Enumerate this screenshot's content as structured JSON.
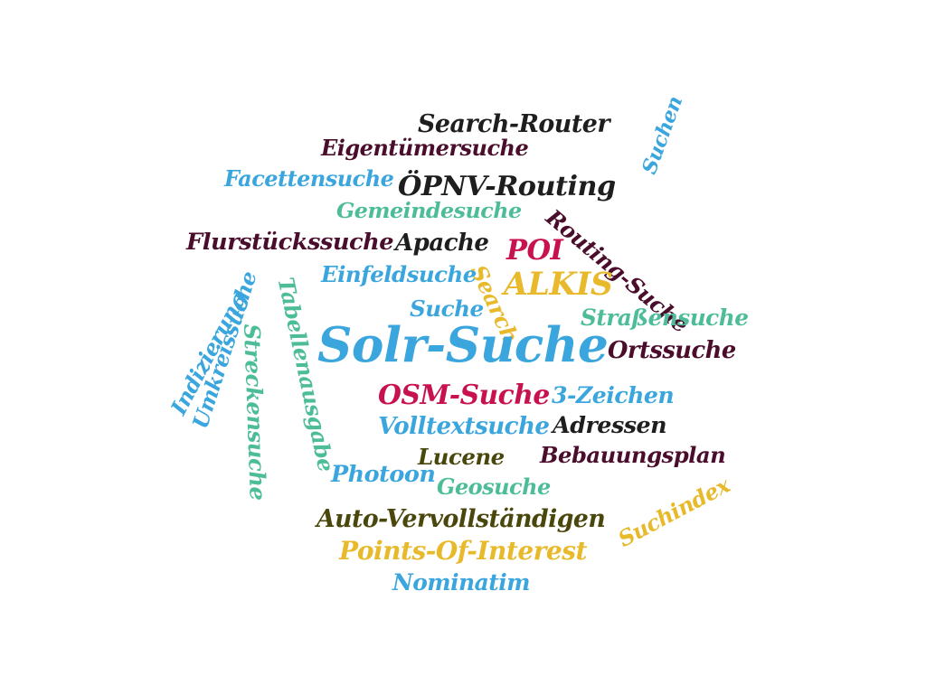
{
  "colors": {
    "blue": "#3aa6dd",
    "teal": "#4dbd99",
    "black": "#1e1e1e",
    "maroon": "#4a0d2c",
    "crimson": "#c8124f",
    "gold": "#e8b92a",
    "olive": "#4a470c"
  },
  "words": [
    {
      "id": "search-router",
      "text": "Search-Router",
      "color": "black",
      "weight": 3
    },
    {
      "id": "eigentuemersuche",
      "text": "Eigentümersuche",
      "color": "maroon",
      "weight": 3
    },
    {
      "id": "facettensuche",
      "text": "Facettensuche",
      "color": "blue",
      "weight": 3
    },
    {
      "id": "oepnv-routing",
      "text": "ÖPNV-Routing",
      "color": "black",
      "weight": 3
    },
    {
      "id": "gemeindesuche",
      "text": "Gemeindesuche",
      "color": "teal",
      "weight": 3
    },
    {
      "id": "suchen",
      "text": "Suchen",
      "color": "blue",
      "weight": 3
    },
    {
      "id": "routing-suche",
      "text": "Routing-Suche",
      "color": "maroon",
      "weight": 3
    },
    {
      "id": "flurstueckssuche",
      "text": "Flurstückssuche",
      "color": "maroon",
      "weight": 3
    },
    {
      "id": "apache",
      "text": "Apache",
      "color": "black",
      "weight": 3
    },
    {
      "id": "poi",
      "text": "POI",
      "color": "crimson",
      "weight": 4
    },
    {
      "id": "alkis",
      "text": "ALKIS",
      "color": "gold",
      "weight": 3
    },
    {
      "id": "search",
      "text": "Search",
      "color": "gold",
      "weight": 3
    },
    {
      "id": "einfeldsuche",
      "text": "Einfeldsuche",
      "color": "blue",
      "weight": 3
    },
    {
      "id": "suche",
      "text": "Suche",
      "color": "blue",
      "weight": 3
    },
    {
      "id": "strassensuche",
      "text": "Straßensuche",
      "color": "teal",
      "weight": 3
    },
    {
      "id": "solr-suche",
      "text": "Solr-Suche",
      "color": "blue",
      "weight": 9
    },
    {
      "id": "ortssuche",
      "text": "Ortssuche",
      "color": "maroon",
      "weight": 3
    },
    {
      "id": "indizierung",
      "text": "Indizierung",
      "color": "blue",
      "weight": 3
    },
    {
      "id": "umkreissuche",
      "text": "Umkreissuche",
      "color": "blue",
      "weight": 3
    },
    {
      "id": "tabellenausgabe",
      "text": "Tabellenausgabe",
      "color": "teal",
      "weight": 3
    },
    {
      "id": "streckensuche",
      "text": "Streckensuche",
      "color": "teal",
      "weight": 3
    },
    {
      "id": "osm-suche",
      "text": "OSM-Suche",
      "color": "crimson",
      "weight": 3
    },
    {
      "id": "drei-zeichen",
      "text": "3-Zeichen",
      "color": "blue",
      "weight": 3
    },
    {
      "id": "volltextsuche",
      "text": "Volltextsuche",
      "color": "blue",
      "weight": 3
    },
    {
      "id": "adressen",
      "text": "Adressen",
      "color": "black",
      "weight": 3
    },
    {
      "id": "lucene",
      "text": "Lucene",
      "color": "olive",
      "weight": 3
    },
    {
      "id": "bebauungsplan",
      "text": "Bebauungsplan",
      "color": "maroon",
      "weight": 3
    },
    {
      "id": "photoon",
      "text": "Photoon",
      "color": "blue",
      "weight": 3
    },
    {
      "id": "geosuche",
      "text": "Geosuche",
      "color": "teal",
      "weight": 3
    },
    {
      "id": "suchindex",
      "text": "Suchindex",
      "color": "gold",
      "weight": 3
    },
    {
      "id": "auto-vervollstaendigen",
      "text": "Auto-Vervollständigen",
      "color": "olive",
      "weight": 3
    },
    {
      "id": "points-of-interest",
      "text": "Points-Of-Interest",
      "color": "gold",
      "weight": 3
    },
    {
      "id": "nominatim",
      "text": "Nominatim",
      "color": "blue",
      "weight": 3
    }
  ]
}
